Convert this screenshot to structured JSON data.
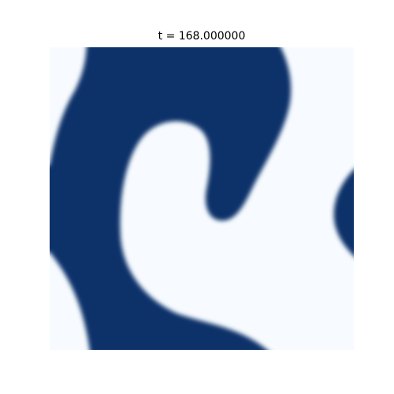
{
  "title": "t = 168.000000"
}
